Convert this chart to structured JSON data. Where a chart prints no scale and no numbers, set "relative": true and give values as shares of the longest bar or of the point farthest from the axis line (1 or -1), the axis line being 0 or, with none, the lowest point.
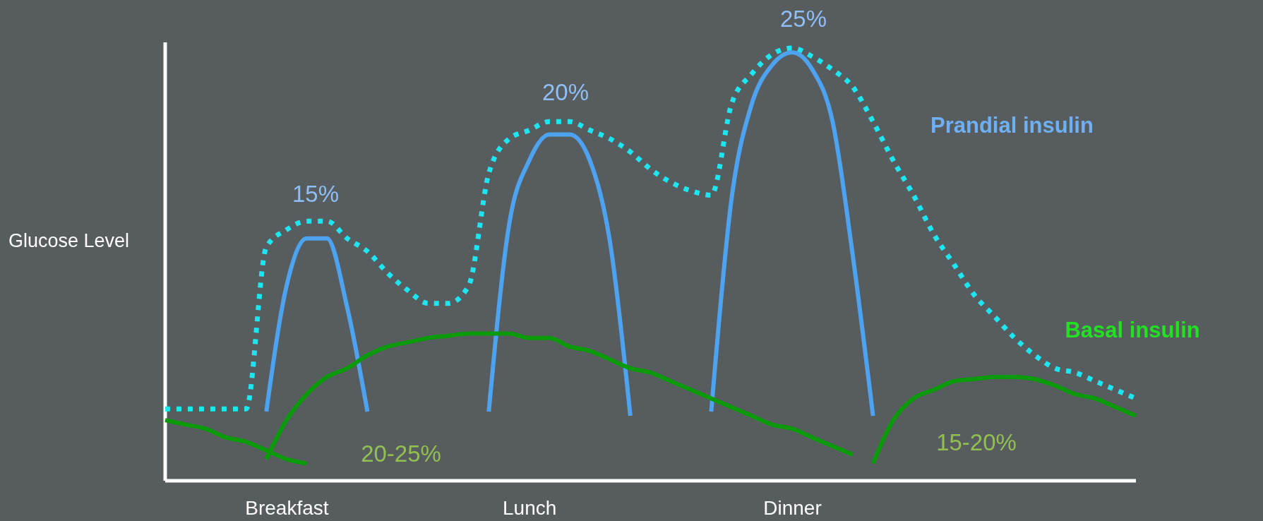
{
  "chart_data": {
    "type": "line",
    "relative": true,
    "ylabel": "Glucose Level",
    "categories": [
      null,
      null,
      null,
      null,
      null,
      null,
      "Breakfast",
      null,
      null,
      null,
      null,
      null,
      null,
      null,
      null,
      null,
      null,
      null,
      "Lunch",
      null,
      null,
      null,
      null,
      null,
      null,
      null,
      null,
      null,
      null,
      null,
      null,
      "Dinner",
      null,
      null,
      null,
      null,
      null,
      null,
      null,
      null,
      null,
      null,
      null,
      null,
      null,
      null,
      null,
      null,
      null
    ],
    "series": [
      {
        "color": "#1ee6f0",
        "line_style": "dotted",
        "values": [
          0.166,
          0.166,
          0.166,
          0.166,
          0.166,
          0.54,
          0.58,
          0.6,
          0.6,
          0.56,
          0.53,
          0.48,
          0.44,
          0.41,
          0.41,
          0.45,
          0.71,
          0.79,
          0.81,
          0.83,
          0.83,
          0.81,
          0.79,
          0.76,
          0.72,
          0.69,
          0.67,
          0.66,
          0.87,
          0.94,
          0.985,
          1.0,
          0.98,
          0.95,
          0.91,
          0.83,
          0.74,
          0.66,
          0.57,
          0.5,
          0.43,
          0.38,
          0.33,
          0.29,
          0.26,
          0.25,
          0.23,
          0.21,
          0.19
        ]
      },
      {
        "color": "#4da3f0",
        "values": [
          null,
          null,
          null,
          null,
          null,
          0.16,
          0.45,
          0.56,
          0.56,
          0.4,
          0.16,
          null,
          null,
          null,
          null,
          null,
          0.16,
          0.59,
          0.74,
          0.8,
          0.8,
          0.74,
          0.55,
          0.15,
          null,
          null,
          null,
          0.16,
          0.65,
          0.87,
          0.96,
          0.99,
          0.95,
          0.83,
          0.52,
          0.15,
          null,
          null,
          null,
          null,
          null,
          null,
          null,
          null,
          null,
          null,
          null,
          null,
          null
        ]
      },
      {
        "name": "Prandial insulin",
        "color": "#6fb0f5",
        "values": [
          null,
          null,
          null,
          null,
          null,
          null,
          null,
          null,
          null,
          null,
          null,
          null,
          null,
          null,
          null,
          null,
          null,
          null,
          null,
          null,
          null,
          null,
          null,
          null,
          null,
          null,
          null,
          null,
          null,
          null,
          null,
          null,
          null,
          null,
          null,
          null,
          null,
          null,
          null,
          null,
          null,
          null,
          null,
          null,
          null,
          null,
          null,
          null,
          null
        ]
      },
      {
        "color": "#0a9a0a",
        "values": [
          0.14,
          0.13,
          0.12,
          0.1,
          0.09,
          0.07,
          0.05,
          0.04,
          null,
          null,
          null,
          null,
          null,
          null,
          null,
          null,
          null,
          null,
          null,
          null,
          null,
          null,
          null,
          null,
          null,
          null,
          null,
          null,
          null,
          null,
          null,
          null,
          null,
          null,
          null,
          null,
          null,
          null,
          null,
          null,
          null,
          null,
          null,
          null,
          null,
          null,
          null,
          null,
          null
        ]
      },
      {
        "color": "#0a9a0a",
        "values": [
          null,
          null,
          null,
          null,
          null,
          0.05,
          0.14,
          0.2,
          0.24,
          0.26,
          0.29,
          0.31,
          0.32,
          0.33,
          0.335,
          0.34,
          0.34,
          0.34,
          0.33,
          0.33,
          0.31,
          0.3,
          0.28,
          0.26,
          0.25,
          0.23,
          0.21,
          0.19,
          0.17,
          0.15,
          0.13,
          0.12,
          0.1,
          0.08,
          0.06,
          null,
          null,
          null,
          null,
          null,
          null,
          null,
          null,
          null,
          null,
          null,
          null,
          null,
          null
        ]
      },
      {
        "name": "Basal insulin",
        "color": "#0a9a0a",
        "values": [
          null,
          null,
          null,
          null,
          null,
          null,
          null,
          null,
          null,
          null,
          null,
          null,
          null,
          null,
          null,
          null,
          null,
          null,
          null,
          null,
          null,
          null,
          null,
          null,
          null,
          null,
          null,
          null,
          null,
          null,
          null,
          null,
          null,
          null,
          null,
          0.04,
          0.14,
          0.19,
          0.21,
          0.23,
          0.235,
          0.24,
          0.24,
          0.235,
          0.22,
          0.2,
          0.19,
          0.17,
          0.15
        ]
      }
    ],
    "annotations": [
      "15%",
      "20%",
      "25%",
      "20-25%",
      "15-20%"
    ]
  }
}
